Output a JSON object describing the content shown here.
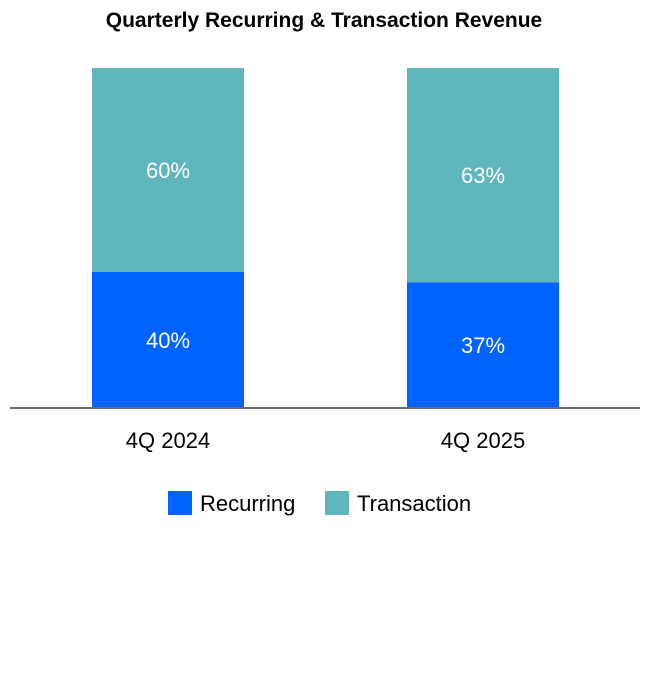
{
  "chart_data": {
    "type": "bar",
    "stacked": true,
    "title": "Quarterly Recurring & Transaction Revenue",
    "xlabel": "",
    "ylabel": "",
    "categories": [
      "4Q 2024",
      "4Q 2025"
    ],
    "series": [
      {
        "name": "Recurring",
        "values": [
          40,
          37
        ],
        "labels": [
          "40%",
          "37%"
        ],
        "color": "#0062ff"
      },
      {
        "name": "Transaction",
        "values": [
          60,
          63
        ],
        "labels": [
          "60%",
          "63%"
        ],
        "color": "#5fb6bc"
      }
    ],
    "ylim": [
      0,
      100
    ],
    "grid": false,
    "legend": "bottom-center"
  },
  "colors": {
    "axis": "#6e6e6e"
  }
}
